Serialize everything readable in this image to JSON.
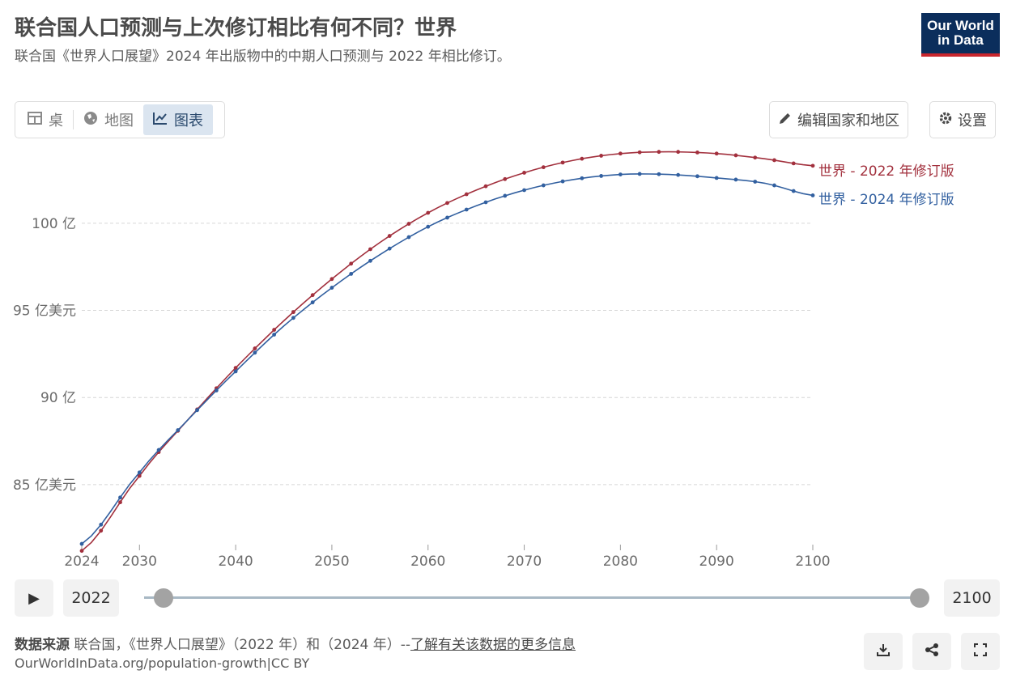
{
  "header": {
    "title": "联合国人口预测与上次修订相比有何不同？世界",
    "subtitle": "联合国《世界人口展望》2024 年出版物中的中期人口预测与 2022 年相比修订。",
    "logo_line1": "Our World",
    "logo_line2": "in Data"
  },
  "tabs": [
    {
      "label": "桌",
      "icon": "table-icon"
    },
    {
      "label": "地图",
      "icon": "globe-icon"
    },
    {
      "label": "图表",
      "icon": "line-chart-icon"
    }
  ],
  "controls": {
    "edit_label": "编辑国家和地区",
    "settings_label": "设置"
  },
  "chart_data": {
    "type": "line",
    "x_ticks": [
      "2024",
      "2030",
      "2040",
      "2050",
      "2060",
      "2070",
      "2080",
      "2090",
      "2100"
    ],
    "y_ticks": [
      {
        "value": 8.5,
        "label": "85 亿美元"
      },
      {
        "value": 9.0,
        "label": "90 亿"
      },
      {
        "value": 9.5,
        "label": "95 亿美元"
      },
      {
        "value": 10.0,
        "label": "100 亿"
      }
    ],
    "xlim": [
      2024,
      2100
    ],
    "ylim": [
      8.1,
      10.45
    ],
    "grid": true,
    "series": [
      {
        "name": "世界 - 2022 年修订版",
        "color": "#a2303d",
        "x": [
          2024,
          2030,
          2035,
          2040,
          2045,
          2050,
          2055,
          2060,
          2065,
          2070,
          2075,
          2080,
          2085,
          2090,
          2095,
          2100
        ],
        "y": [
          8.12,
          8.55,
          8.87,
          9.17,
          9.44,
          9.68,
          9.89,
          10.06,
          10.19,
          10.29,
          10.36,
          10.4,
          10.41,
          10.4,
          10.37,
          10.33
        ]
      },
      {
        "name": "世界 - 2024 年修订版",
        "color": "#3260a0",
        "x": [
          2024,
          2030,
          2035,
          2040,
          2045,
          2050,
          2055,
          2060,
          2065,
          2070,
          2075,
          2080,
          2085,
          2090,
          2095,
          2100
        ],
        "y": [
          8.16,
          8.57,
          8.87,
          9.15,
          9.41,
          9.63,
          9.82,
          9.98,
          10.1,
          10.19,
          10.25,
          10.28,
          10.28,
          10.26,
          10.23,
          10.16
        ]
      }
    ]
  },
  "timeline": {
    "start_label": "2022",
    "end_label": "2100",
    "play_icon": "play-icon"
  },
  "footer": {
    "source_title": "数据来源",
    "source_text": "联合国，《世界人口展望》（2022 年）和（2024 年）--",
    "source_link": "了解有关该数据的更多信息",
    "url": "OurWorldInData.org/population-growth|CC BY"
  }
}
